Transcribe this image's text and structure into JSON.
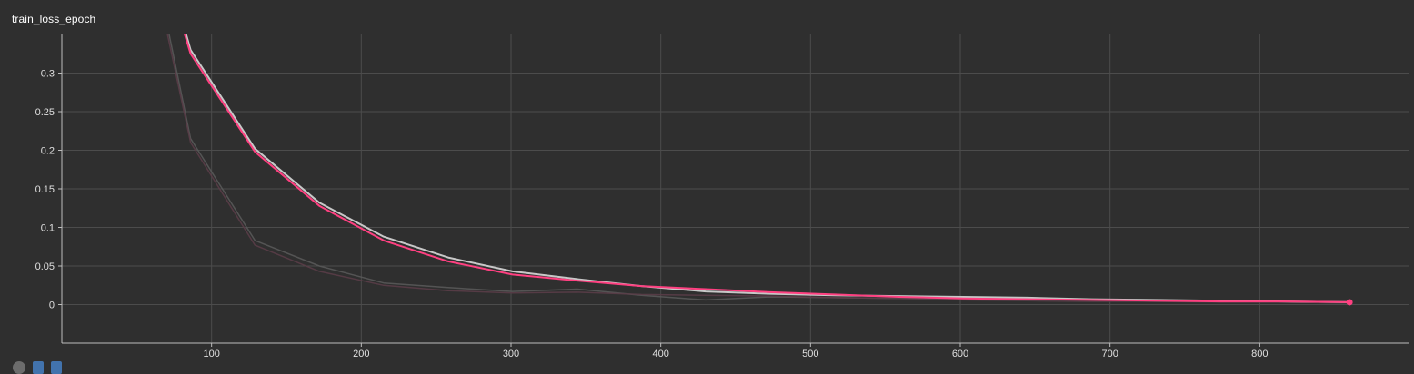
{
  "chart_data": {
    "type": "line",
    "title": "train_loss_epoch",
    "xlabel": "",
    "ylabel": "",
    "xlim": [
      0,
      900
    ],
    "ylim": [
      -0.05,
      0.35
    ],
    "x_ticks": [
      100,
      200,
      300,
      400,
      500,
      600,
      700,
      800
    ],
    "y_ticks": [
      0,
      0.05,
      0.1,
      0.15,
      0.2,
      0.25,
      0.3
    ],
    "y_tick_labels": [
      "0",
      "0.05",
      "0.1",
      "0.15",
      "0.2",
      "0.25",
      "0.3"
    ],
    "grid": true,
    "series": [
      {
        "role": "raw",
        "color": "#595959",
        "x": [
          43,
          86,
          129,
          172,
          215,
          258,
          301,
          344,
          387,
          430,
          473,
          516,
          559,
          602,
          645,
          688,
          731,
          774,
          817,
          860
        ],
        "y": [
          0.62,
          0.215,
          0.083,
          0.05,
          0.028,
          0.022,
          0.017,
          0.02,
          0.012,
          0.006,
          0.01,
          0.009,
          0.008,
          0.009,
          0.009,
          0.006,
          0.004,
          0.004,
          0.003,
          0.002
        ]
      },
      {
        "role": "raw",
        "color": "#5a3d48",
        "x": [
          43,
          86,
          129,
          172,
          215,
          258,
          301,
          344,
          387,
          430,
          473,
          516,
          559,
          602,
          645,
          688,
          731,
          774,
          817,
          860
        ],
        "y": [
          0.6,
          0.21,
          0.077,
          0.043,
          0.025,
          0.018,
          0.015,
          0.016,
          0.013,
          0.012,
          0.011,
          0.009,
          0.008,
          0.006,
          0.005,
          0.004,
          0.004,
          0.003,
          0.003,
          0.002
        ]
      },
      {
        "role": "smoothed",
        "color": "#c8c8c8",
        "x": [
          43,
          86,
          129,
          172,
          215,
          258,
          301,
          344,
          387,
          430,
          473,
          516,
          559,
          602,
          645,
          688,
          731,
          774,
          817,
          860
        ],
        "y": [
          0.62,
          0.33,
          0.202,
          0.132,
          0.088,
          0.061,
          0.043,
          0.033,
          0.024,
          0.017,
          0.014,
          0.012,
          0.011,
          0.01,
          0.009,
          0.007,
          0.006,
          0.005,
          0.004,
          0.003
        ]
      },
      {
        "role": "smoothed",
        "color": "#ff4081",
        "x": [
          43,
          86,
          129,
          172,
          215,
          258,
          301,
          344,
          387,
          430,
          473,
          516,
          559,
          602,
          645,
          688,
          731,
          774,
          817,
          860
        ],
        "y": [
          0.6,
          0.325,
          0.198,
          0.128,
          0.083,
          0.056,
          0.039,
          0.031,
          0.024,
          0.02,
          0.016,
          0.013,
          0.01,
          0.008,
          0.007,
          0.006,
          0.005,
          0.004,
          0.004,
          0.003
        ]
      }
    ]
  }
}
